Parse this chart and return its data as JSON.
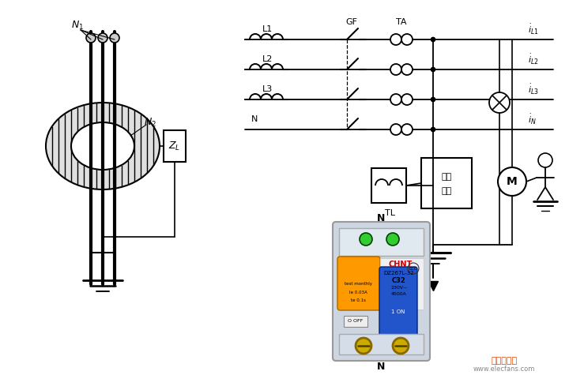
{
  "bg_color": "#ffffff",
  "fig_width": 7.2,
  "fig_height": 4.75,
  "dpi": 100,
  "watermark_text": "电子发烧友",
  "watermark_url": "www.elecfans.com",
  "diagram_lines": [
    "L1",
    "L2",
    "L3",
    "N"
  ],
  "current_labels": [
    "i_{L1}",
    "i_{L2}",
    "i_{L3}",
    "i_N"
  ],
  "labels_left": [
    "N_1",
    "N_2",
    "Z_L"
  ],
  "circuit_labels": [
    "GF",
    "TA",
    "TL",
    "中间\n环节"
  ],
  "breaker_model": "DZ267L-32",
  "breaker_brand": "CHNT",
  "breaker_rating": "C32",
  "breaker_label_n": "N",
  "line_color": "#000000",
  "diagram_bg": "#f8f8f8"
}
